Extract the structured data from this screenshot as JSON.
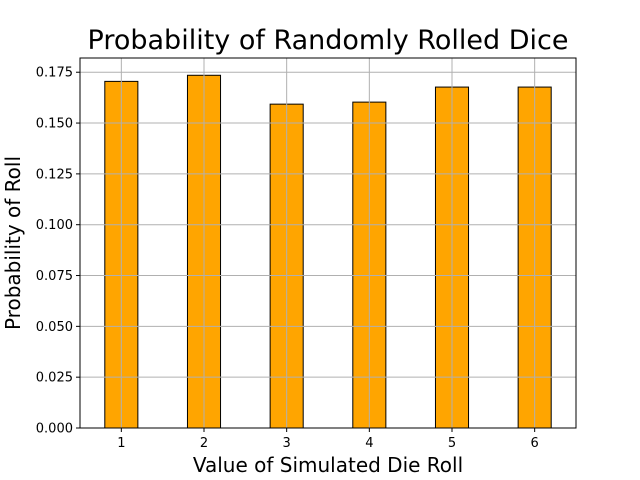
{
  "chart_data": {
    "type": "bar",
    "title": "Probability of Randomly Rolled Dice",
    "xlabel": "Value of Simulated Die Roll",
    "ylabel": "Probability of Roll",
    "categories": [
      "1",
      "2",
      "3",
      "4",
      "5",
      "6"
    ],
    "values": [
      0.1705,
      0.1735,
      0.1593,
      0.1603,
      0.1677,
      0.1677
    ],
    "ylim": [
      0,
      0.182
    ],
    "xlim": [
      0.5,
      6.5
    ],
    "yticks": [
      0.0,
      0.025,
      0.05,
      0.075,
      0.1,
      0.125,
      0.15,
      0.175
    ],
    "ytick_labels": [
      "0.000",
      "0.025",
      "0.050",
      "0.075",
      "0.100",
      "0.125",
      "0.150",
      "0.175"
    ],
    "bar_width": 0.4,
    "grid": true,
    "colors": {
      "bar_fill": "#ffa500",
      "bar_edge": "#000000",
      "grid": "#b0b0b0"
    }
  }
}
